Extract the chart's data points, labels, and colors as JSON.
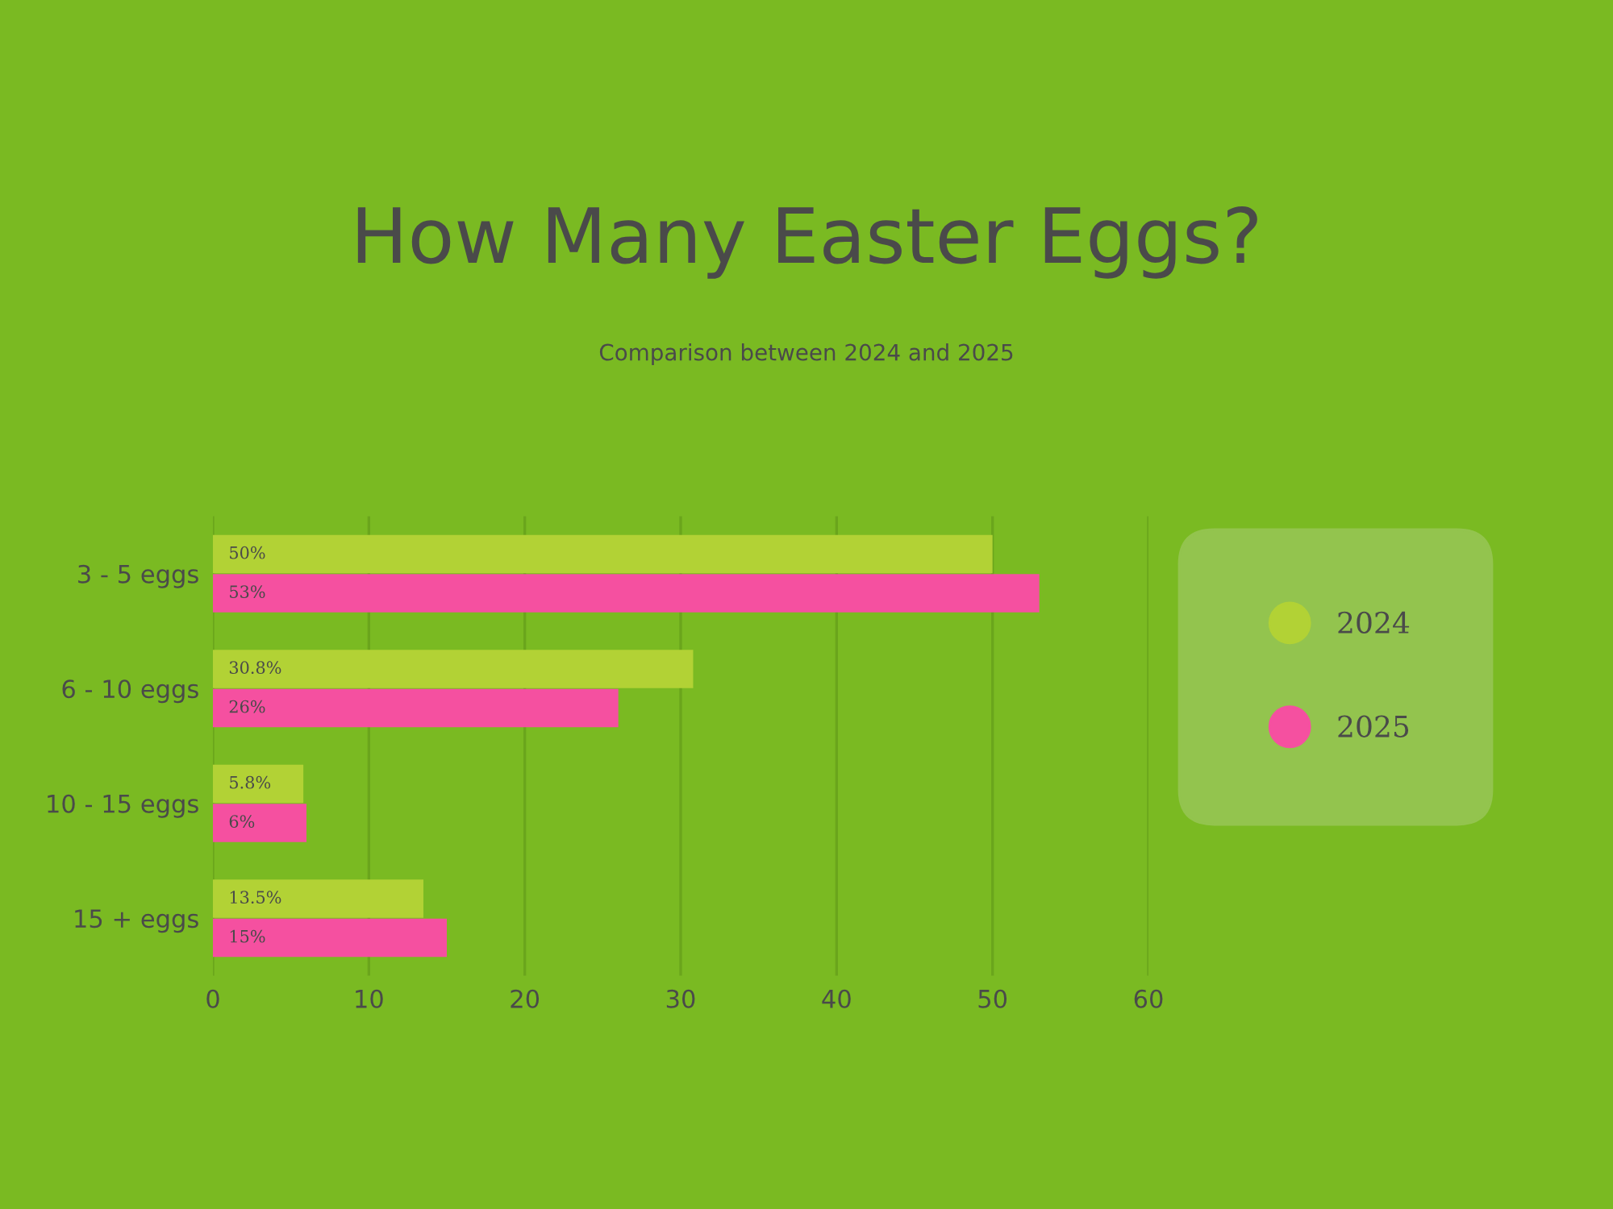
{
  "chart_data": {
    "type": "bar",
    "orientation": "horizontal",
    "title": "How Many Easter Eggs?",
    "subtitle": "Comparison between 2024 and 2025",
    "categories": [
      "3 - 5 eggs",
      "6 - 10 eggs",
      "10 - 15 eggs",
      "15 + eggs"
    ],
    "series": [
      {
        "name": "2024",
        "color": "#b2d235",
        "values": [
          50,
          30.8,
          5.8,
          13.5
        ],
        "value_labels": [
          "50%",
          "30.8%",
          "5.8%",
          "13.5%"
        ]
      },
      {
        "name": "2025",
        "color": "#f550a0",
        "values": [
          53,
          26,
          6,
          15
        ],
        "value_labels": [
          "53%",
          "26%",
          "6%",
          "15%"
        ]
      }
    ],
    "xlim": [
      0,
      60
    ],
    "xticks": [
      0,
      10,
      20,
      30,
      40,
      50,
      60
    ],
    "grid": "x",
    "legend": "right"
  }
}
